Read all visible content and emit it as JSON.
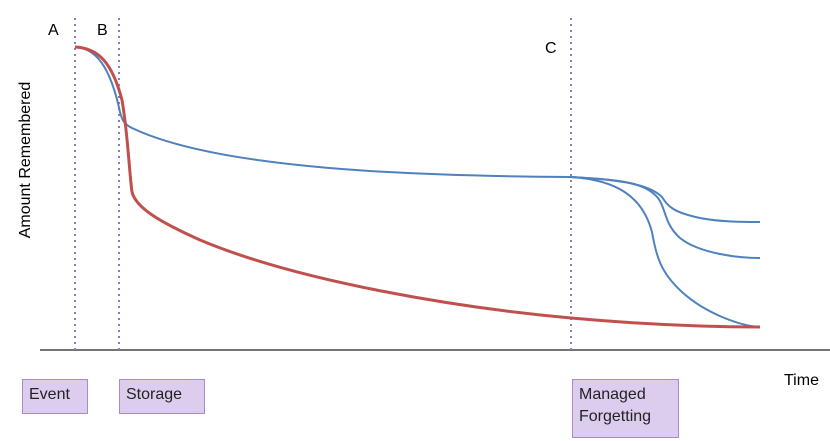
{
  "labels": {
    "phase_a": "A",
    "phase_b": "B",
    "phase_c": "C",
    "y_axis": "Amount Remembered",
    "x_axis": "Time"
  },
  "stages": {
    "event": "Event",
    "storage": "Storage",
    "managed_line1": "Managed",
    "managed_line2": "Forgetting"
  },
  "colors": {
    "blue_curve": "#4f81bd",
    "red_curve": "#c0504d",
    "marker_line": "#8c7bb6",
    "box_fill": "#dccdee",
    "box_border": "#a88cc9"
  }
}
